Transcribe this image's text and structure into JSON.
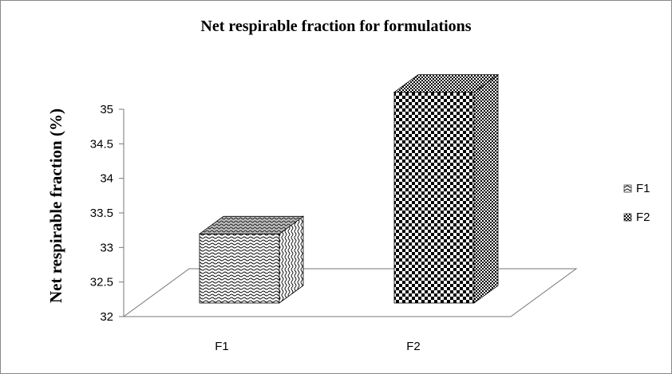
{
  "chart_data": {
    "type": "bar",
    "title": "Net respirable fraction for formulations",
    "ylabel": "Net respirable fraction (%)",
    "xlabel": "",
    "categories": [
      "F1",
      "F2"
    ],
    "series": [
      {
        "name": "F1",
        "values": [
          33.0,
          null
        ]
      },
      {
        "name": "F2",
        "values": [
          null,
          35.05
        ]
      }
    ],
    "ylim": [
      32,
      35
    ],
    "yticks": [
      "32",
      "32.5",
      "33",
      "33.5",
      "34",
      "34.5",
      "35"
    ],
    "legend_position": "right",
    "grid": false,
    "three_d": true,
    "patterns": {
      "F1": "wave",
      "F2": "checker"
    }
  }
}
